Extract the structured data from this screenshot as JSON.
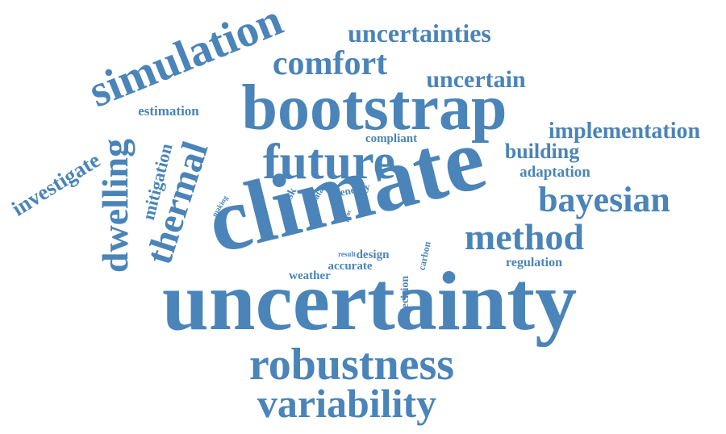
{
  "word_color": "#4a84b8",
  "background_color": "#ffffff",
  "words": [
    "uncertainty",
    "climate",
    "bootstrap",
    "future",
    "simulation",
    "robustness",
    "variability",
    "method",
    "bayesian",
    "comfort",
    "dwelling",
    "thermal",
    "uncertainties",
    "uncertain",
    "implementation",
    "building",
    "adaptation",
    "investigate",
    "mitigation",
    "estimation",
    "compliant",
    "regulation",
    "design",
    "accurate",
    "weather",
    "decision",
    "carbon",
    "energy",
    "risk",
    "data",
    "making",
    "case",
    "proc",
    "result"
  ]
}
